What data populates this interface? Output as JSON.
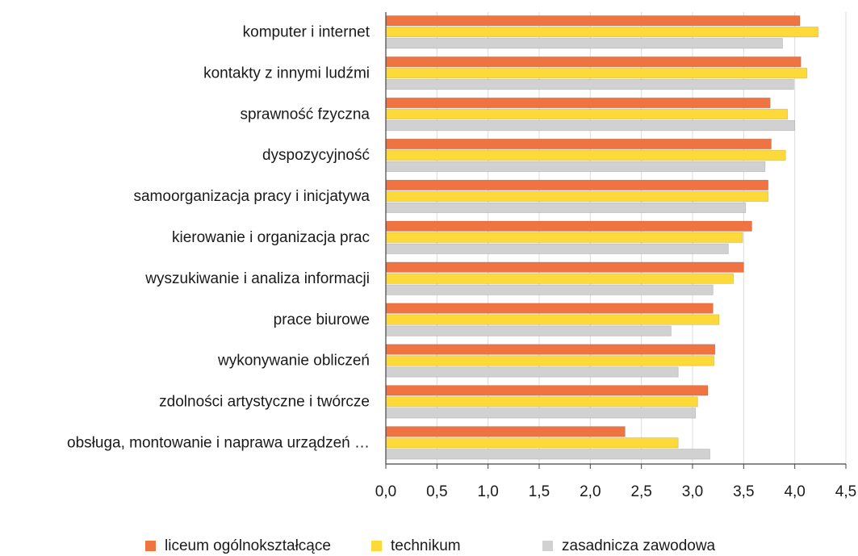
{
  "chart_data": {
    "type": "barh",
    "categories": [
      "komputer i internet",
      "kontakty z innymi ludźmi",
      "sprawność fzyczna",
      "dyspozycyjność",
      "samoorganizacja pracy i inicjatywa",
      "kierowanie i organizacja prac",
      "wyszukiwanie i analiza informacji",
      "prace biurowe",
      "wykonywanie obliczeń",
      "zdolności artystyczne i twórcze",
      "obsługa, montowanie i naprawa urządzeń …"
    ],
    "series": [
      {
        "name": "liceum ogólnokształcące",
        "color": "#ef7442",
        "values": [
          4.05,
          4.06,
          3.76,
          3.77,
          3.74,
          3.58,
          3.5,
          3.2,
          3.22,
          3.15,
          2.34
        ]
      },
      {
        "name": "technikum",
        "color": "#fdd939",
        "values": [
          4.23,
          4.12,
          3.93,
          3.91,
          3.74,
          3.49,
          3.4,
          3.26,
          3.21,
          3.05,
          2.86
        ]
      },
      {
        "name": "zasadnicza zawodowa",
        "color": "#d1d1d1",
        "values": [
          3.88,
          3.99,
          4.0,
          3.71,
          3.52,
          3.35,
          3.2,
          2.79,
          2.86,
          3.03,
          3.17
        ]
      }
    ],
    "xlim": [
      0,
      4.5
    ],
    "xticks": [
      {
        "value": 0,
        "label": "0,0"
      },
      {
        "value": 0.5,
        "label": "0,5"
      },
      {
        "value": 1,
        "label": "1,0"
      },
      {
        "value": 1.5,
        "label": "1,5"
      },
      {
        "value": 2,
        "label": "2,0"
      },
      {
        "value": 2.5,
        "label": "2,5"
      },
      {
        "value": 3,
        "label": "3,0"
      },
      {
        "value": 3.5,
        "label": "3,5"
      },
      {
        "value": 4,
        "label": "4,0"
      },
      {
        "value": 4.5,
        "label": "4,5"
      }
    ],
    "grid": true,
    "legend": "bottom"
  }
}
